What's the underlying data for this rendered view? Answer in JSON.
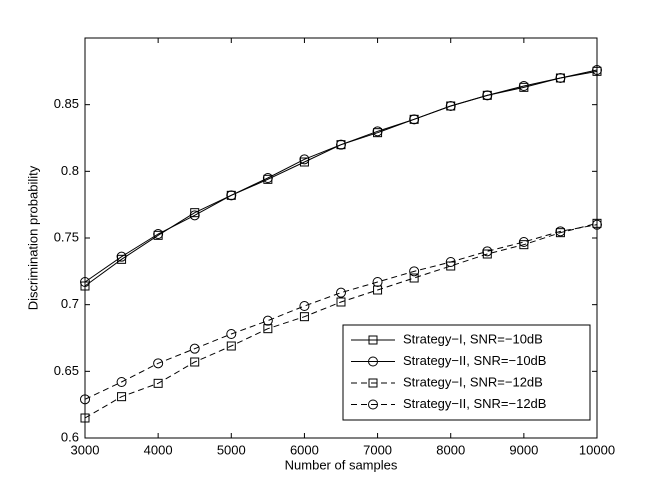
{
  "chart_data": {
    "type": "line",
    "xlabel": "Number of samples",
    "ylabel": "Discrimination probability",
    "x": [
      3000,
      3500,
      4000,
      4500,
      5000,
      5500,
      6000,
      6500,
      7000,
      7500,
      8000,
      8500,
      9000,
      9500,
      10000
    ],
    "series": [
      {
        "name": "Strategy−I, SNR=−10dB",
        "color": "#000000",
        "marker": "square",
        "dashed": false,
        "values": [
          0.714,
          0.734,
          0.752,
          0.769,
          0.782,
          0.794,
          0.807,
          0.82,
          0.829,
          0.839,
          0.849,
          0.857,
          0.863,
          0.87,
          0.875
        ]
      },
      {
        "name": "Strategy−II, SNR=−10dB",
        "color": "#000000",
        "marker": "circle",
        "dashed": false,
        "values": [
          0.717,
          0.736,
          0.753,
          0.767,
          0.782,
          0.795,
          0.809,
          0.82,
          0.83,
          0.839,
          0.849,
          0.857,
          0.864,
          0.87,
          0.876
        ]
      },
      {
        "name": "Strategy−I, SNR=−12dB",
        "color": "#000000",
        "marker": "square",
        "dashed": true,
        "values": [
          0.615,
          0.631,
          0.641,
          0.657,
          0.669,
          0.682,
          0.691,
          0.702,
          0.711,
          0.72,
          0.729,
          0.738,
          0.745,
          0.754,
          0.761
        ]
      },
      {
        "name": "Strategy−II, SNR=−12dB",
        "color": "#000000",
        "marker": "circle",
        "dashed": true,
        "values": [
          0.629,
          0.642,
          0.656,
          0.667,
          0.678,
          0.688,
          0.699,
          0.709,
          0.717,
          0.725,
          0.732,
          0.74,
          0.747,
          0.755,
          0.76
        ]
      }
    ],
    "xlim": [
      3000,
      10000
    ],
    "xticks": [
      3000,
      4000,
      5000,
      6000,
      7000,
      8000,
      9000,
      10000
    ],
    "ylim": [
      0.6,
      0.9
    ],
    "yticks": [
      0.6,
      0.65,
      0.7,
      0.75,
      0.8,
      0.85
    ],
    "grid": false,
    "legend": "lower right"
  }
}
